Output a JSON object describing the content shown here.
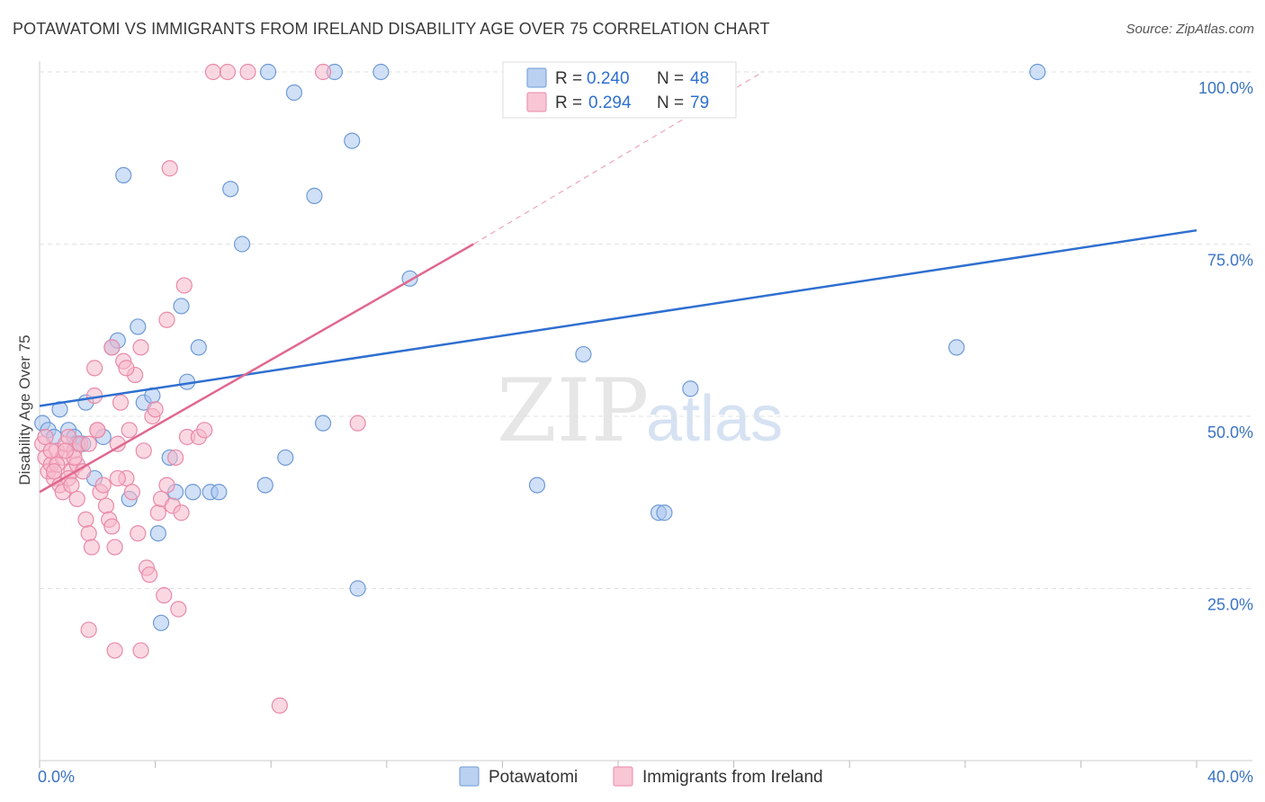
{
  "title": "POTAWATOMI VS IMMIGRANTS FROM IRELAND DISABILITY AGE OVER 75 CORRELATION CHART",
  "source": "Source: ZipAtlas.com",
  "watermark": {
    "zip": "ZIP",
    "atlas": "atlas"
  },
  "legend": {
    "r_label": "R =",
    "n_label": "N =",
    "entries": [
      {
        "r": "0.240",
        "n": "48",
        "color": "#a9c6ee"
      },
      {
        "r": "0.294",
        "n": "79",
        "color": "#f6b8cb"
      }
    ]
  },
  "chart_data": {
    "type": "scatter",
    "title": "POTAWATOMI VS IMMIGRANTS FROM IRELAND DISABILITY AGE OVER 75 CORRELATION CHART",
    "xlabel": "",
    "ylabel": "Disability Age Over 75",
    "xlim": [
      0,
      40
    ],
    "ylim": [
      0,
      100
    ],
    "x_tick_labels": [
      "0.0%",
      "40.0%"
    ],
    "y_ticks": [
      25,
      50,
      75,
      100
    ],
    "y_tick_labels": [
      "25.0%",
      "50.0%",
      "75.0%",
      "100.0%"
    ],
    "grid": true,
    "series": [
      {
        "name": "Potawatomi",
        "color": "#a9c6ee",
        "stroke": "#6f9ad6",
        "line_color": "#2f6fd0",
        "r": 0.24,
        "n": 48,
        "trend": {
          "x0": 0,
          "y0": 51.5,
          "x1": 40,
          "y1": 77
        },
        "points": [
          [
            0.1,
            49
          ],
          [
            0.3,
            48
          ],
          [
            0.5,
            47
          ],
          [
            0.7,
            51
          ],
          [
            1.0,
            48
          ],
          [
            1.2,
            47
          ],
          [
            1.5,
            46
          ],
          [
            1.6,
            52
          ],
          [
            1.9,
            41
          ],
          [
            2.2,
            47
          ],
          [
            2.5,
            60
          ],
          [
            2.7,
            61
          ],
          [
            2.9,
            85
          ],
          [
            3.1,
            38
          ],
          [
            3.4,
            63
          ],
          [
            3.6,
            52
          ],
          [
            3.9,
            53
          ],
          [
            4.1,
            33
          ],
          [
            4.2,
            20
          ],
          [
            4.5,
            44
          ],
          [
            4.7,
            39
          ],
          [
            4.9,
            66
          ],
          [
            5.1,
            55
          ],
          [
            5.3,
            39
          ],
          [
            5.5,
            60
          ],
          [
            5.9,
            39
          ],
          [
            6.2,
            39
          ],
          [
            6.6,
            83
          ],
          [
            7.0,
            75
          ],
          [
            7.8,
            40
          ],
          [
            7.9,
            100
          ],
          [
            8.5,
            44
          ],
          [
            8.8,
            97
          ],
          [
            9.5,
            82
          ],
          [
            9.8,
            49
          ],
          [
            10.2,
            100
          ],
          [
            10.8,
            90
          ],
          [
            11.0,
            25
          ],
          [
            11.8,
            100
          ],
          [
            12.8,
            70
          ],
          [
            17.2,
            40
          ],
          [
            18.8,
            59
          ],
          [
            21.4,
            36
          ],
          [
            21.6,
            36
          ],
          [
            22.5,
            54
          ],
          [
            31.7,
            60
          ],
          [
            34.5,
            100
          ],
          [
            1.3,
            46
          ]
        ]
      },
      {
        "name": "Immigrants from Ireland",
        "color": "#f6b8cb",
        "stroke": "#e98aa8",
        "line_color": "#e0688f",
        "r": 0.294,
        "n": 79,
        "trend": {
          "x0": 0,
          "y0": 39,
          "x1": 15,
          "y1": 75
        },
        "trend_ext": {
          "x0": 15,
          "y0": 75,
          "x1": 25,
          "y1": 100
        },
        "points": [
          [
            0.1,
            46
          ],
          [
            0.2,
            44
          ],
          [
            0.3,
            42
          ],
          [
            0.4,
            43
          ],
          [
            0.5,
            41
          ],
          [
            0.6,
            45
          ],
          [
            0.7,
            40
          ],
          [
            0.8,
            44
          ],
          [
            0.9,
            46
          ],
          [
            1.0,
            47
          ],
          [
            1.1,
            42
          ],
          [
            1.2,
            45
          ],
          [
            1.3,
            43
          ],
          [
            1.4,
            46
          ],
          [
            0.2,
            47
          ],
          [
            0.4,
            45
          ],
          [
            0.6,
            43
          ],
          [
            0.8,
            39
          ],
          [
            1.0,
            41
          ],
          [
            1.3,
            38
          ],
          [
            1.5,
            42
          ],
          [
            1.6,
            35
          ],
          [
            1.7,
            33
          ],
          [
            1.8,
            31
          ],
          [
            1.9,
            53
          ],
          [
            2.0,
            48
          ],
          [
            2.1,
            39
          ],
          [
            2.2,
            40
          ],
          [
            2.3,
            37
          ],
          [
            2.4,
            35
          ],
          [
            2.5,
            34
          ],
          [
            2.6,
            31
          ],
          [
            2.7,
            46
          ],
          [
            2.8,
            52
          ],
          [
            2.9,
            58
          ],
          [
            3.0,
            41
          ],
          [
            3.1,
            48
          ],
          [
            3.2,
            39
          ],
          [
            3.3,
            56
          ],
          [
            3.4,
            33
          ],
          [
            3.5,
            60
          ],
          [
            3.6,
            45
          ],
          [
            3.7,
            28
          ],
          [
            3.8,
            27
          ],
          [
            3.9,
            50
          ],
          [
            4.0,
            51
          ],
          [
            4.1,
            36
          ],
          [
            4.2,
            38
          ],
          [
            4.3,
            24
          ],
          [
            4.4,
            64
          ],
          [
            4.5,
            86
          ],
          [
            4.6,
            37
          ],
          [
            4.7,
            44
          ],
          [
            4.8,
            22
          ],
          [
            4.9,
            36
          ],
          [
            5.0,
            69
          ],
          [
            5.1,
            47
          ],
          [
            5.5,
            47
          ],
          [
            5.7,
            48
          ],
          [
            6.0,
            100
          ],
          [
            6.5,
            100
          ],
          [
            7.2,
            100
          ],
          [
            8.3,
            8
          ],
          [
            9.8,
            100
          ],
          [
            11.0,
            49
          ],
          [
            2.5,
            60
          ],
          [
            1.7,
            19
          ],
          [
            2.6,
            16
          ],
          [
            3.5,
            16
          ],
          [
            1.9,
            57
          ],
          [
            3.0,
            57
          ],
          [
            1.2,
            44
          ],
          [
            0.9,
            45
          ],
          [
            2.0,
            48
          ],
          [
            1.7,
            46
          ],
          [
            1.1,
            40
          ],
          [
            0.5,
            42
          ],
          [
            4.4,
            40
          ],
          [
            2.7,
            41
          ]
        ]
      }
    ]
  }
}
